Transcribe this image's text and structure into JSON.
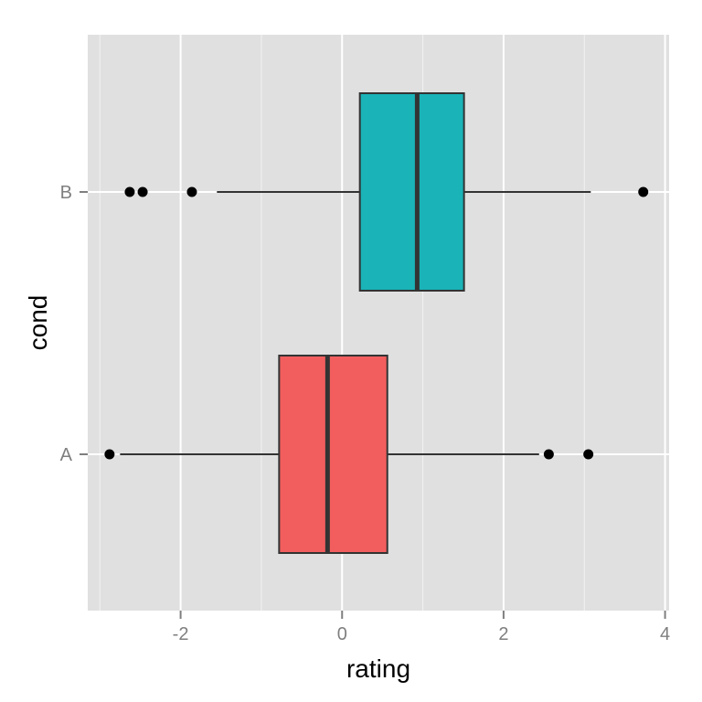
{
  "chart_data": {
    "type": "boxplot",
    "orientation": "horizontal",
    "xlabel": "rating",
    "ylabel": "cond",
    "xlim": [
      -3.15,
      4.05
    ],
    "x_ticks": [
      {
        "value": -2,
        "label": "-2"
      },
      {
        "value": 0,
        "label": "0"
      },
      {
        "value": 2,
        "label": "2"
      },
      {
        "value": 4,
        "label": "4"
      }
    ],
    "categories": [
      "A",
      "B"
    ],
    "grid": true,
    "legend": "none",
    "background_color": "#E0E0E0",
    "grid_color": "#FFFFFF",
    "series": [
      {
        "category": "A",
        "color": "#F25E5E",
        "whisker_low": -2.75,
        "q1": -0.78,
        "median": -0.18,
        "q3": 0.56,
        "whisker_high": 2.44,
        "outliers": [
          -2.88,
          2.56,
          3.05
        ]
      },
      {
        "category": "B",
        "color": "#1AB3B8",
        "whisker_low": -1.55,
        "q1": 0.22,
        "median": 0.93,
        "q3": 1.51,
        "whisker_high": 3.08,
        "outliers": [
          -2.63,
          -2.47,
          -1.86,
          3.73
        ]
      }
    ]
  }
}
